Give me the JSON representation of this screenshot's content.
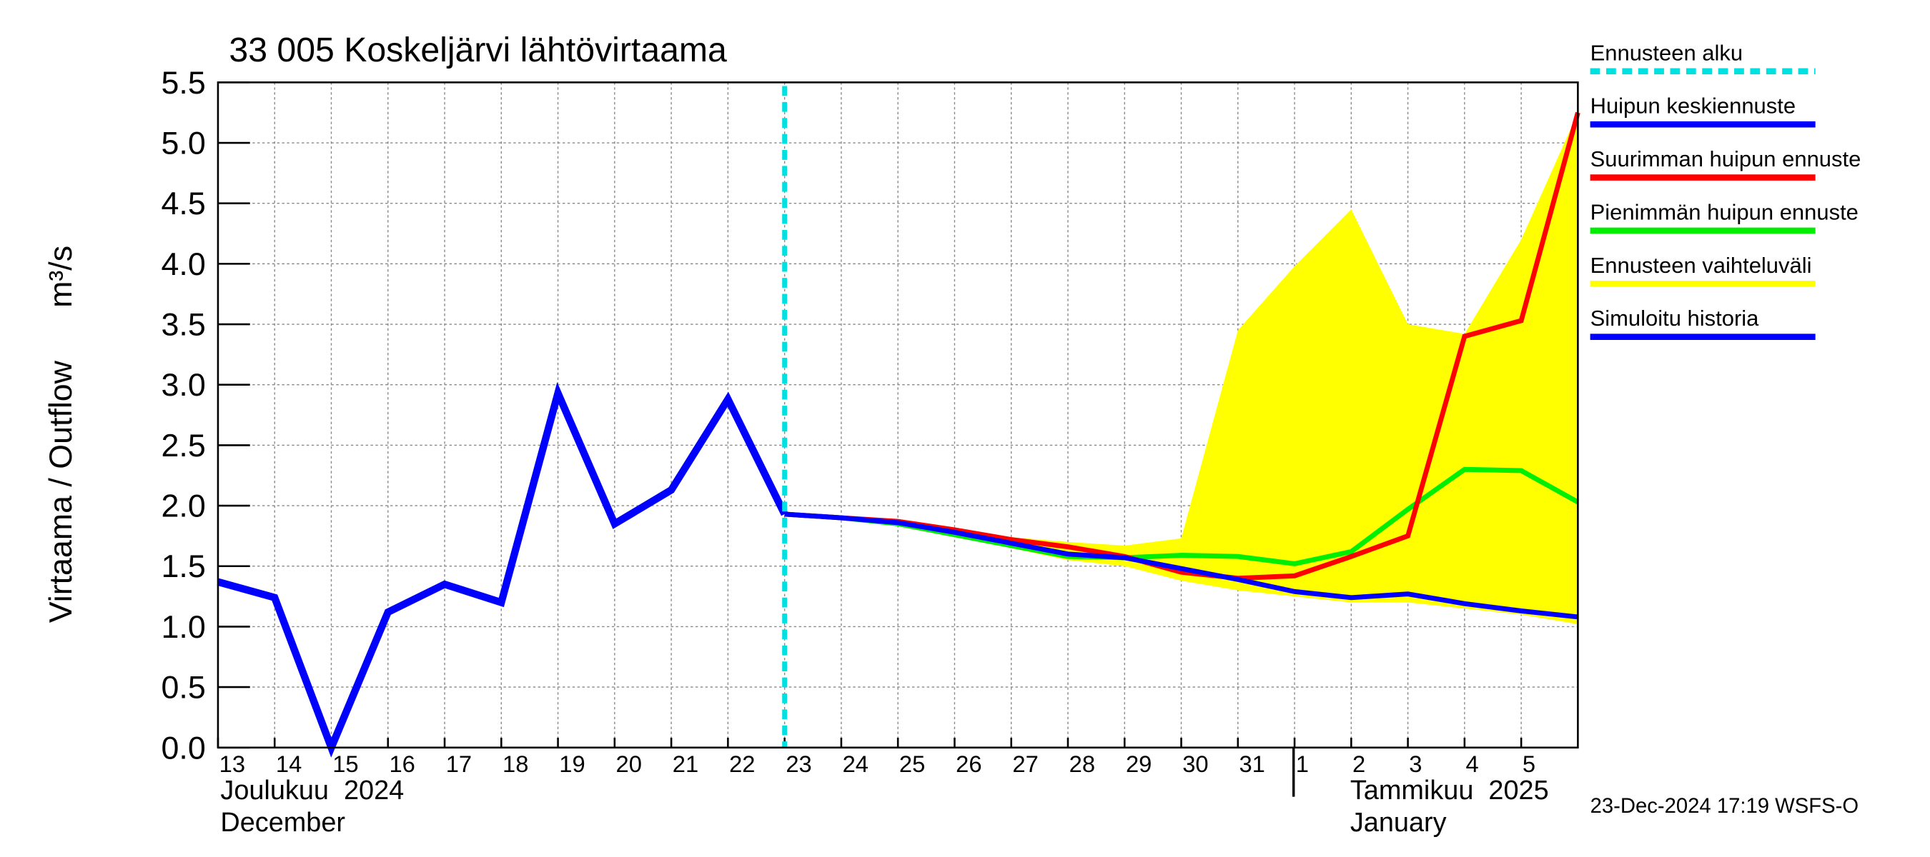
{
  "chart_data": {
    "type": "line",
    "title": "33 005 Koskeljärvi lähtövirtaama",
    "y_label": "Virtaama / Outflow",
    "y_unit": "m³/s",
    "footer": "23-Dec-2024 17:19 WSFS-O",
    "month_labels": [
      "Joulukuu  2024",
      "December",
      "Tammikuu  2025",
      "January"
    ],
    "xlim": [
      "2024-12-13",
      "2025-01-06"
    ],
    "ylim": [
      0,
      5.5
    ],
    "grid": true,
    "yticks": [
      {
        "value": 0,
        "label": "0.0"
      },
      {
        "value": 0.5,
        "label": "0.5"
      },
      {
        "value": 1,
        "label": "1.0"
      },
      {
        "value": 1.5,
        "label": "1.5"
      },
      {
        "value": 2,
        "label": "2.0"
      },
      {
        "value": 2.5,
        "label": "2.5"
      },
      {
        "value": 3,
        "label": "3.0"
      },
      {
        "value": 3.5,
        "label": "3.5"
      },
      {
        "value": 4,
        "label": "4.0"
      },
      {
        "value": 4.5,
        "label": "4.5"
      },
      {
        "value": 5,
        "label": "5.0"
      },
      {
        "value": 5.5,
        "label": "5.5"
      }
    ],
    "xticks": [
      {
        "value": "2024-12-13",
        "label": "13"
      },
      {
        "value": "2024-12-14",
        "label": "14"
      },
      {
        "value": "2024-12-15",
        "label": "15"
      },
      {
        "value": "2024-12-16",
        "label": "16"
      },
      {
        "value": "2024-12-17",
        "label": "17"
      },
      {
        "value": "2024-12-18",
        "label": "18"
      },
      {
        "value": "2024-12-19",
        "label": "19"
      },
      {
        "value": "2024-12-20",
        "label": "20"
      },
      {
        "value": "2024-12-21",
        "label": "21"
      },
      {
        "value": "2024-12-22",
        "label": "22"
      },
      {
        "value": "2024-12-23",
        "label": "23"
      },
      {
        "value": "2024-12-24",
        "label": "24"
      },
      {
        "value": "2024-12-25",
        "label": "25"
      },
      {
        "value": "2024-12-26",
        "label": "26"
      },
      {
        "value": "2024-12-27",
        "label": "27"
      },
      {
        "value": "2024-12-28",
        "label": "28"
      },
      {
        "value": "2024-12-29",
        "label": "29"
      },
      {
        "value": "2024-12-30",
        "label": "30"
      },
      {
        "value": "2024-12-31",
        "label": "31"
      },
      {
        "value": "2025-01-01",
        "label": "1"
      },
      {
        "value": "2025-01-02",
        "label": "2"
      },
      {
        "value": "2025-01-03",
        "label": "3"
      },
      {
        "value": "2025-01-04",
        "label": "4"
      },
      {
        "value": "2025-01-05",
        "label": "5"
      }
    ],
    "forecast_start": {
      "name": "Ennusteen alku",
      "color": "#00e0e0",
      "x": "2024-12-23"
    },
    "series": [
      {
        "name": "Huipun keskiennuste",
        "color": "#0000ff",
        "x": [
          "2024-12-23",
          "2024-12-24",
          "2024-12-25",
          "2024-12-26",
          "2024-12-27",
          "2024-12-28",
          "2024-12-29",
          "2024-12-30",
          "2024-12-31",
          "2025-01-01",
          "2025-01-02",
          "2025-01-03",
          "2025-01-04",
          "2025-01-05",
          "2025-01-06"
        ],
        "values": [
          1.93,
          1.9,
          1.86,
          1.78,
          1.69,
          1.6,
          1.57,
          1.48,
          1.39,
          1.29,
          1.24,
          1.27,
          1.19,
          1.13,
          1.08
        ]
      },
      {
        "name": "Suurimman huipun ennuste",
        "color": "#ff0000",
        "x": [
          "2024-12-23",
          "2024-12-24",
          "2024-12-25",
          "2024-12-26",
          "2024-12-27",
          "2024-12-28",
          "2024-12-29",
          "2024-12-30",
          "2024-12-31",
          "2025-01-01",
          "2025-01-02",
          "2025-01-03",
          "2025-01-04",
          "2025-01-05",
          "2025-01-06"
        ],
        "values": [
          1.93,
          1.9,
          1.87,
          1.8,
          1.72,
          1.66,
          1.58,
          1.45,
          1.4,
          1.42,
          1.58,
          1.75,
          3.4,
          3.53,
          5.25
        ]
      },
      {
        "name": "Pienimmän huipun ennuste",
        "color": "#00ee00",
        "x": [
          "2024-12-23",
          "2024-12-24",
          "2024-12-25",
          "2024-12-26",
          "2024-12-27",
          "2024-12-28",
          "2024-12-29",
          "2024-12-30",
          "2024-12-31",
          "2025-01-01",
          "2025-01-02",
          "2025-01-03",
          "2025-01-04",
          "2025-01-05",
          "2025-01-06"
        ],
        "values": [
          1.93,
          1.9,
          1.85,
          1.76,
          1.67,
          1.58,
          1.57,
          1.59,
          1.58,
          1.52,
          1.62,
          1.97,
          2.3,
          2.29,
          2.03
        ]
      },
      {
        "name": "Ennusteen vaihteluväli",
        "color": "#ffff00",
        "x": [
          "2024-12-23",
          "2024-12-24",
          "2024-12-25",
          "2024-12-26",
          "2024-12-27",
          "2024-12-28",
          "2024-12-29",
          "2024-12-30",
          "2024-12-31",
          "2025-01-01",
          "2025-01-02",
          "2025-01-03",
          "2025-01-04",
          "2025-01-05",
          "2025-01-06"
        ],
        "upper": [
          1.93,
          1.9,
          1.87,
          1.8,
          1.74,
          1.7,
          1.67,
          1.73,
          3.45,
          3.98,
          4.45,
          3.5,
          3.42,
          4.2,
          5.25
        ],
        "lower": [
          1.93,
          1.9,
          1.85,
          1.76,
          1.65,
          1.55,
          1.5,
          1.38,
          1.3,
          1.25,
          1.2,
          1.2,
          1.15,
          1.1,
          1.02
        ]
      },
      {
        "name": "Simuloitu historia",
        "color": "#0000ff",
        "x": [
          "2024-12-13",
          "2024-12-14",
          "2024-12-15",
          "2024-12-16",
          "2024-12-17",
          "2024-12-18",
          "2024-12-19",
          "2024-12-20",
          "2024-12-21",
          "2024-12-22",
          "2024-12-23"
        ],
        "values": [
          1.37,
          1.24,
          0,
          1.12,
          1.35,
          1.2,
          2.93,
          1.85,
          2.13,
          2.88,
          1.93
        ]
      }
    ]
  }
}
